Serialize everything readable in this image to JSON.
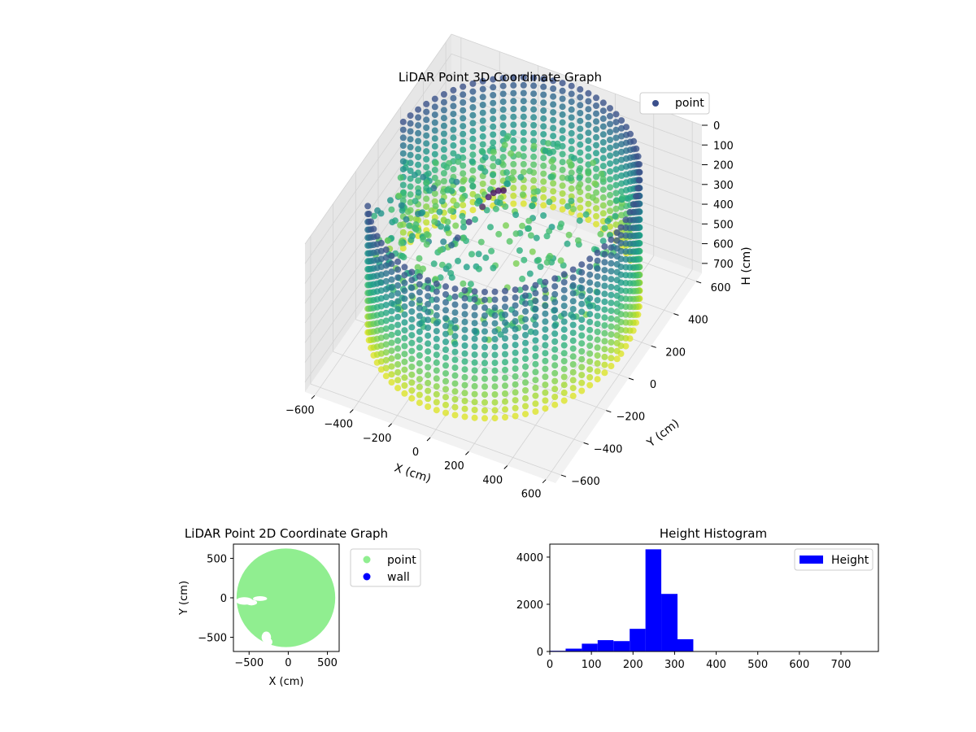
{
  "chart_data": [
    {
      "type": "scatter",
      "title": "LiDAR Point 3D Coordinate Graph",
      "xlabel": "X (cm)",
      "ylabel": "Y (cm)",
      "zlabel": "H (cm)",
      "xlim": [
        -650,
        650
      ],
      "ylim": [
        -650,
        650
      ],
      "zlim": [
        750,
        0
      ],
      "xticks": [
        "−600",
        "−400",
        "−200",
        "0",
        "200",
        "400",
        "600"
      ],
      "yticks": [
        "−600",
        "−400",
        "−200",
        "0",
        "200",
        "400",
        "600"
      ],
      "zticks": [
        "0",
        "100",
        "200",
        "300",
        "400",
        "500",
        "600",
        "700"
      ],
      "legend": {
        "entries": [
          {
            "label": "point",
            "color": "#3b4f8c"
          }
        ],
        "placement": "upper-right"
      },
      "colormap": "viridis",
      "grid": true,
      "series": [
        {
          "name": "point",
          "description_values": {
            "wall_radius": 610,
            "wall_top_h": 0,
            "wall_bottom_h": 640,
            "floor_h": 280
          },
          "points": [
            {
              "x": -450,
              "y": 150,
              "h": 300
            },
            {
              "x": -400,
              "y": 100,
              "h": 420
            },
            {
              "x": -350,
              "y": 60,
              "h": 500
            },
            {
              "x": -300,
              "y": -20,
              "h": 380
            },
            {
              "x": -250,
              "y": -80,
              "h": 450
            },
            {
              "x": -200,
              "y": -120,
              "h": 280
            },
            {
              "x": -150,
              "y": -150,
              "h": 200
            },
            {
              "x": -120,
              "y": -100,
              "h": 150
            },
            {
              "x": -80,
              "y": -50,
              "h": 100
            },
            {
              "x": -60,
              "y": -30,
              "h": 60
            },
            {
              "x": -40,
              "y": -20,
              "h": 40
            },
            {
              "x": -20,
              "y": -10,
              "h": 30
            },
            {
              "x": 0,
              "y": 0,
              "h": 30
            }
          ]
        }
      ]
    },
    {
      "type": "scatter",
      "title": "LiDAR Point 2D Coordinate Graph",
      "xlabel": "X (cm)",
      "ylabel": "Y (cm)",
      "xlim": [
        -700,
        650
      ],
      "ylim": [
        -680,
        680
      ],
      "xticks": [
        "−500",
        "0",
        "500"
      ],
      "yticks": [
        "−500",
        "0",
        "500"
      ],
      "legend": {
        "entries": [
          {
            "label": "point",
            "color": "#90ee90"
          },
          {
            "label": "wall",
            "color": "#0000ff"
          }
        ],
        "placement": "outside-right"
      },
      "series": [
        {
          "name": "point",
          "color": "#90ee90",
          "region": {
            "center": [
              -30,
              0
            ],
            "radius": 630
          }
        },
        {
          "name": "wall",
          "color": "#0000ff"
        }
      ]
    },
    {
      "type": "bar",
      "title": "Height Histogram",
      "xlim": [
        0,
        790
      ],
      "ylim": [
        0,
        4550
      ],
      "xticks": [
        "0",
        "100",
        "200",
        "300",
        "400",
        "500",
        "600",
        "700"
      ],
      "yticks": [
        "0",
        "2000",
        "4000"
      ],
      "legend": {
        "entries": [
          {
            "label": "Height",
            "color": "#0000ff"
          }
        ],
        "placement": "upper-right"
      },
      "series": [
        {
          "name": "Height",
          "color": "#0000ff",
          "bins": [
            {
              "start": 0,
              "end": 38,
              "count": 30
            },
            {
              "start": 38,
              "end": 77,
              "count": 120
            },
            {
              "start": 77,
              "end": 115,
              "count": 330
            },
            {
              "start": 115,
              "end": 153,
              "count": 480
            },
            {
              "start": 153,
              "end": 192,
              "count": 440
            },
            {
              "start": 192,
              "end": 230,
              "count": 960
            },
            {
              "start": 230,
              "end": 268,
              "count": 4330
            },
            {
              "start": 268,
              "end": 307,
              "count": 2440
            },
            {
              "start": 307,
              "end": 345,
              "count": 520
            },
            {
              "start": 345,
              "end": 383,
              "count": 8
            },
            {
              "start": 383,
              "end": 422,
              "count": 4
            },
            {
              "start": 422,
              "end": 460,
              "count": 3
            },
            {
              "start": 460,
              "end": 498,
              "count": 2
            },
            {
              "start": 498,
              "end": 537,
              "count": 2
            },
            {
              "start": 537,
              "end": 575,
              "count": 2
            },
            {
              "start": 575,
              "end": 613,
              "count": 2
            },
            {
              "start": 613,
              "end": 652,
              "count": 1
            },
            {
              "start": 652,
              "end": 690,
              "count": 1
            },
            {
              "start": 690,
              "end": 728,
              "count": 1
            },
            {
              "start": 728,
              "end": 767,
              "count": 1
            }
          ]
        }
      ]
    }
  ]
}
